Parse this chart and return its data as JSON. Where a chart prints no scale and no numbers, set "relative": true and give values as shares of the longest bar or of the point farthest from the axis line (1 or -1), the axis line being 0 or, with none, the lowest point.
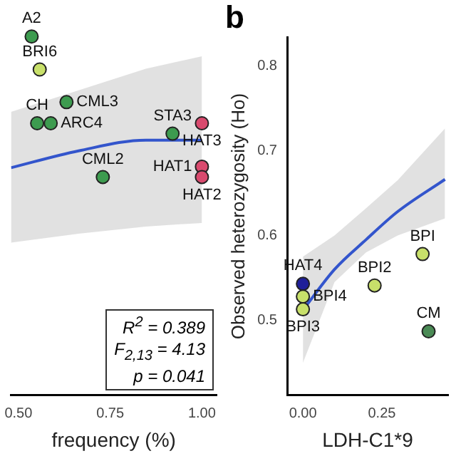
{
  "chart_data": [
    {
      "type": "scatter",
      "relative": true,
      "xlabel": "frequency (%)",
      "xlim": [
        0.48,
        1.04
      ],
      "xticks": [
        {
          "value": 0.5,
          "label": "0.50"
        },
        {
          "value": 0.75,
          "label": "0.75"
        },
        {
          "value": 1,
          "label": "1.00"
        }
      ],
      "tick_labels": "x",
      "grid": false,
      "legend": false,
      "series": [
        {
          "marker": "circle",
          "x": [
            0.536,
            0.558,
            0.631,
            0.551,
            0.588,
            0.92,
            1.0,
            1.0,
            1.0,
            0.73
          ],
          "values": [
            1,
            0.908,
            0.817,
            0.758,
            0.758,
            0.729,
            0.758,
            0.637,
            0.608,
            0.608
          ],
          "colors": [
            "#3d9b4f",
            "#c8e06a",
            "#3d9b4f",
            "#3d9b4f",
            "#3d9b4f",
            "#3d9b4f",
            "#d94a6e",
            "#d94a6e",
            "#d94a6e",
            "#3d9b4f"
          ]
        },
        {
          "type": "line",
          "color": "#3355cc",
          "x": [
            0.48,
            0.664,
            0.847,
            1.0
          ],
          "values": [
            0.634,
            0.681,
            0.711,
            0.711
          ],
          "lower": [
            0.425,
            0.45,
            0.47,
            0.48
          ],
          "upper": [
            0.79,
            0.85,
            0.91,
            0.945
          ]
        }
      ],
      "annotations": [
        {
          "text": "A2",
          "x": 0.536,
          "y": 1
        },
        {
          "text": "BRI6",
          "x": 0.558,
          "y": 0.908
        },
        {
          "text": "CML3",
          "x": 0.631,
          "y": 0.817
        },
        {
          "text": "CH",
          "x": 0.551,
          "y": 0.758
        },
        {
          "text": "ARC4",
          "x": 0.588,
          "y": 0.758
        },
        {
          "text": "STA3",
          "x": 0.92,
          "y": 0.729
        },
        {
          "text": "HAT3",
          "x": 1.0,
          "y": 0.758
        },
        {
          "text": "HAT1",
          "x": 1.0,
          "y": 0.637
        },
        {
          "text": "HAT2",
          "x": 1.0,
          "y": 0.608
        },
        {
          "text": "CML2",
          "x": 0.73,
          "y": 0.608
        },
        "R$^{2}$ = 0.389",
        "F$_{2,13}$ = 4.13",
        "p = 0.041"
      ]
    },
    {
      "type": "scatter",
      "title": "b",
      "ylabel": "Observed heterozygosity (Ho)",
      "xlabel": "LDH-C1*9",
      "xlim": [
        -0.05,
        0.46
      ],
      "ylim": [
        0.412,
        0.833
      ],
      "xticks": [
        {
          "value": 0,
          "label": "0.00"
        },
        {
          "value": 0.25,
          "label": "0.25"
        }
      ],
      "yticks": [
        0.5,
        0.6,
        0.7,
        0.8
      ],
      "grid": false,
      "legend": false,
      "series": [
        {
          "marker": "circle",
          "x": [
            0,
            0,
            0,
            0.227,
            0.379,
            0.398
          ],
          "values": [
            0.543,
            0.528,
            0.513,
            0.541,
            0.578,
            0.487
          ],
          "colors": [
            "#1f1f99",
            "#c8e06a",
            "#c8e06a",
            "#c8e06a",
            "#c8e06a",
            "#4a8a55"
          ]
        },
        {
          "type": "line",
          "color": "#3355cc",
          "x": [
            0,
            0.1,
            0.2,
            0.3,
            0.45
          ],
          "values": [
            0.512,
            0.56,
            0.595,
            0.628,
            0.666
          ],
          "lower": [
            0.45,
            0.545,
            0.58,
            0.6,
            0.62
          ],
          "upper": [
            0.575,
            0.6,
            0.632,
            0.665,
            0.726
          ]
        }
      ],
      "annotations": [
        {
          "text": "HAT4",
          "x": 0,
          "y": 0.543
        },
        {
          "text": "BPI4",
          "x": 0,
          "y": 0.528
        },
        {
          "text": "BPI3",
          "x": 0,
          "y": 0.513
        },
        {
          "text": "BPI2",
          "x": 0.227,
          "y": 0.541
        },
        {
          "text": "BPI",
          "x": 0.379,
          "y": 0.578
        },
        {
          "text": "CM",
          "x": 0.398,
          "y": 0.487
        }
      ]
    }
  ]
}
